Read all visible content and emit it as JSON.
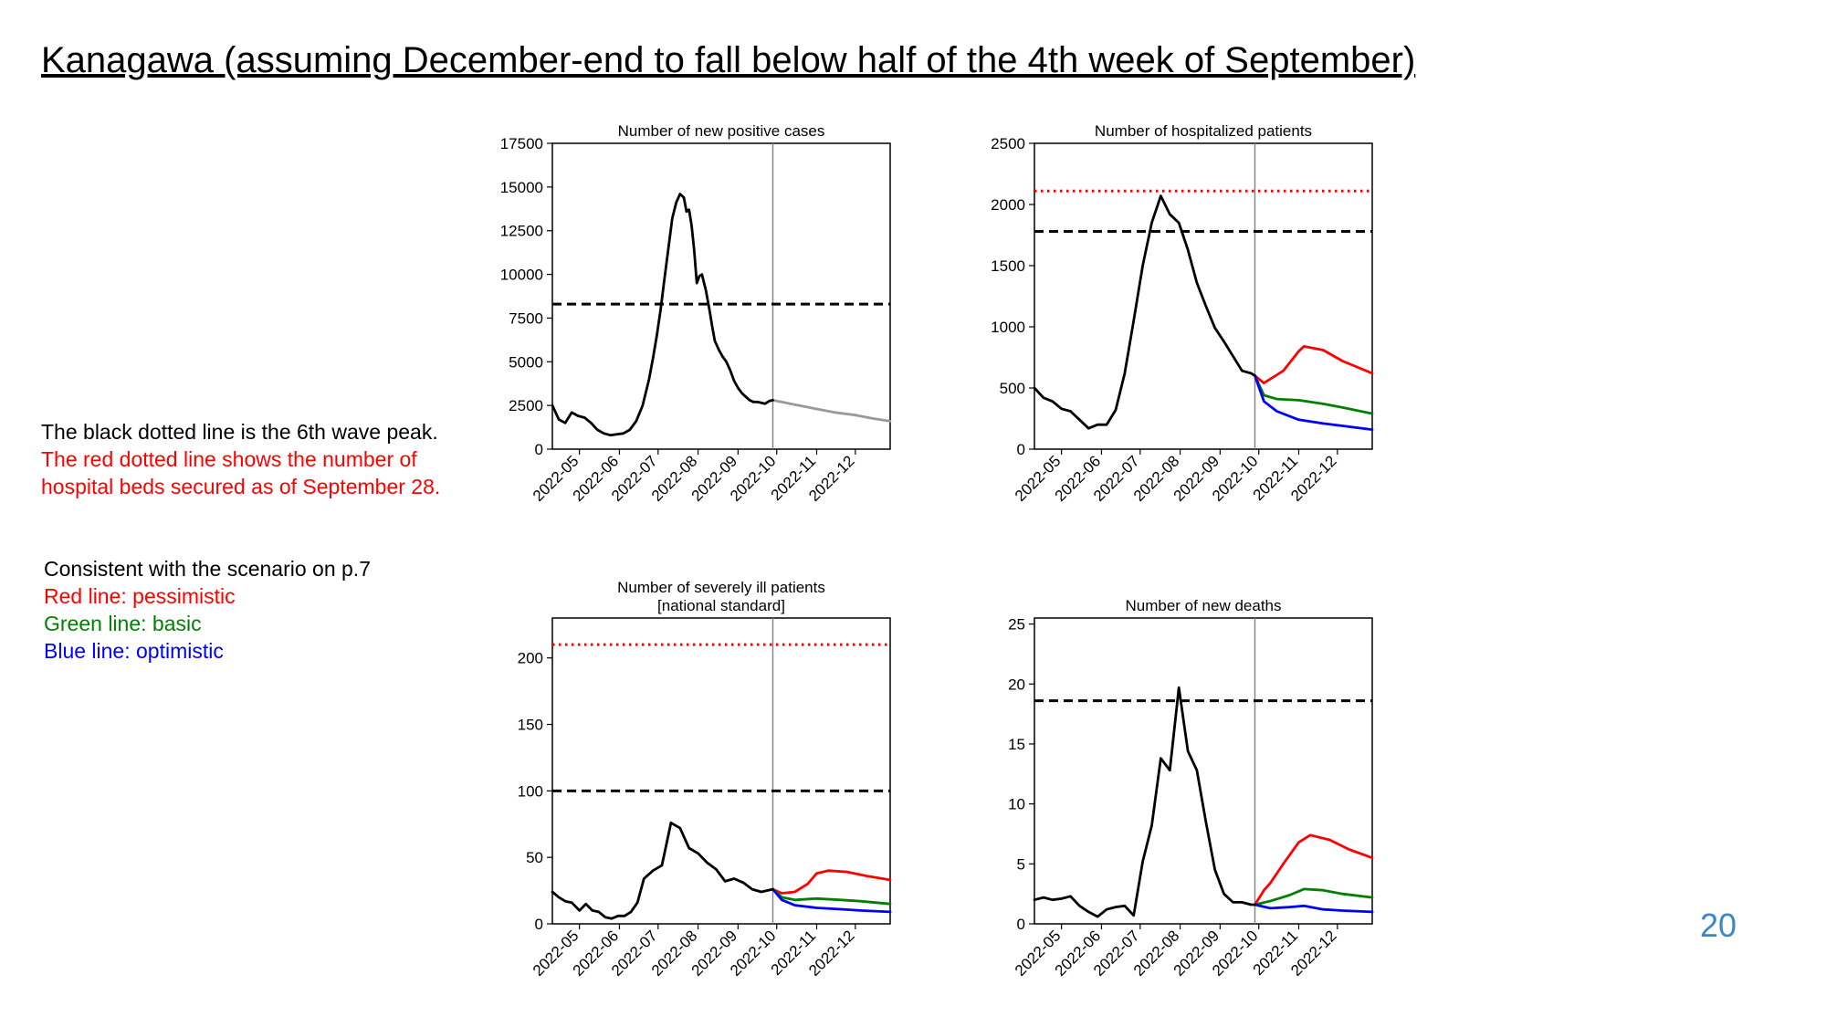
{
  "slide": {
    "title": "Kanagawa (assuming December-end to fall below half of the 4th week of September)",
    "page_number": "20",
    "notes_lines": [
      {
        "text": "The black dotted line is the 6th wave peak.",
        "color": "#000000"
      },
      {
        "text": "The red dotted line shows the number of",
        "color": "#ff0000"
      },
      {
        "text": "hospital beds secured as of September 28.",
        "color": "#ff0000"
      }
    ],
    "scenario_lines": [
      {
        "text": "Consistent with the scenario on p.7",
        "color": "#000000"
      },
      {
        "text": "Red line: pessimistic",
        "color": "#ff0000"
      },
      {
        "text": "Green line: basic",
        "color": "#008000"
      },
      {
        "text": "Blue line: optimistic",
        "color": "#0000ff"
      }
    ]
  },
  "colors": {
    "actual": "#000000",
    "projection_single": "#999999",
    "pessimistic": "#ff0000",
    "basic": "#008000",
    "optimistic": "#0000ff",
    "peak_line": "#000000",
    "beds_line": "#ff0000",
    "divider": "#808080",
    "page_number": "#3b87c7"
  },
  "chart_data": [
    {
      "id": "new_positive_cases",
      "type": "line",
      "title_lines": [
        "Number of new positive cases"
      ],
      "x_tick_labels": [
        "2022-05",
        "2022-06",
        "2022-07",
        "2022-08",
        "2022-09",
        "2022-10",
        "2022-11",
        "2022-12"
      ],
      "x_range": [
        "2022-04-10",
        "2022-12-28"
      ],
      "ylim": [
        0,
        17500
      ],
      "y_ticks": [
        0,
        2500,
        5000,
        7500,
        10000,
        12500,
        15000,
        17500
      ],
      "divider_date": "2022-09-28",
      "hlines": [
        {
          "kind": "peak",
          "value": 8300,
          "style": "dashed"
        }
      ],
      "actual": {
        "x": [
          "2022-04-10",
          "2022-04-15",
          "2022-04-20",
          "2022-04-25",
          "2022-04-30",
          "2022-05-05",
          "2022-05-10",
          "2022-05-15",
          "2022-05-20",
          "2022-05-25",
          "2022-05-30",
          "2022-06-04",
          "2022-06-09",
          "2022-06-14",
          "2022-06-19",
          "2022-06-24",
          "2022-06-27",
          "2022-06-30",
          "2022-07-03",
          "2022-07-06",
          "2022-07-09",
          "2022-07-12",
          "2022-07-15",
          "2022-07-18",
          "2022-07-21",
          "2022-07-23",
          "2022-07-25",
          "2022-07-27",
          "2022-07-29",
          "2022-07-31",
          "2022-08-02",
          "2022-08-04",
          "2022-08-07",
          "2022-08-10",
          "2022-08-12",
          "2022-08-14",
          "2022-08-17",
          "2022-08-20",
          "2022-08-23",
          "2022-08-26",
          "2022-08-29",
          "2022-09-01",
          "2022-09-04",
          "2022-09-07",
          "2022-09-10",
          "2022-09-13",
          "2022-09-16",
          "2022-09-19",
          "2022-09-22",
          "2022-09-25",
          "2022-09-28"
        ],
        "y": [
          2500,
          1700,
          1500,
          2100,
          1900,
          1800,
          1500,
          1100,
          900,
          800,
          850,
          900,
          1100,
          1600,
          2500,
          4000,
          5200,
          6500,
          8000,
          9800,
          11500,
          13200,
          14100,
          14600,
          14400,
          13600,
          13700,
          12800,
          11400,
          9500,
          9900,
          10000,
          9100,
          7900,
          7000,
          6200,
          5700,
          5300,
          5000,
          4500,
          3900,
          3500,
          3200,
          3000,
          2800,
          2700,
          2700,
          2650,
          2600,
          2750,
          2800
        ]
      },
      "projections": [
        {
          "style": "single",
          "x": [
            "2022-09-28",
            "2022-10-15",
            "2022-11-01",
            "2022-11-15",
            "2022-12-01",
            "2022-12-15",
            "2022-12-28"
          ],
          "y": [
            2800,
            2550,
            2300,
            2100,
            1950,
            1750,
            1600
          ]
        }
      ]
    },
    {
      "id": "hospitalized_patients",
      "type": "line",
      "title_lines": [
        "Number of hospitalized patients"
      ],
      "x_tick_labels": [
        "2022-05",
        "2022-06",
        "2022-07",
        "2022-08",
        "2022-09",
        "2022-10",
        "2022-11",
        "2022-12"
      ],
      "x_range": [
        "2022-04-10",
        "2022-12-28"
      ],
      "ylim": [
        0,
        2500
      ],
      "y_ticks": [
        0,
        500,
        1000,
        1500,
        2000,
        2500
      ],
      "divider_date": "2022-09-28",
      "hlines": [
        {
          "kind": "peak",
          "value": 1780,
          "style": "dashed"
        },
        {
          "kind": "beds",
          "value": 2110,
          "style": "dotted"
        }
      ],
      "actual": {
        "x": [
          "2022-04-10",
          "2022-04-17",
          "2022-04-24",
          "2022-05-01",
          "2022-05-08",
          "2022-05-15",
          "2022-05-22",
          "2022-05-29",
          "2022-06-05",
          "2022-06-12",
          "2022-06-19",
          "2022-06-26",
          "2022-07-03",
          "2022-07-10",
          "2022-07-17",
          "2022-07-24",
          "2022-07-31",
          "2022-08-07",
          "2022-08-14",
          "2022-08-21",
          "2022-08-28",
          "2022-09-04",
          "2022-09-11",
          "2022-09-18",
          "2022-09-25",
          "2022-09-28"
        ],
        "y": [
          500,
          420,
          390,
          330,
          310,
          240,
          170,
          200,
          200,
          320,
          620,
          1050,
          1500,
          1850,
          2070,
          1920,
          1850,
          1630,
          1360,
          1170,
          990,
          880,
          760,
          640,
          620,
          600
        ]
      },
      "projections": [
        {
          "style": "pessimistic",
          "x": [
            "2022-09-28",
            "2022-10-05",
            "2022-10-20",
            "2022-11-01",
            "2022-11-05",
            "2022-11-20",
            "2022-12-05",
            "2022-12-28"
          ],
          "y": [
            600,
            540,
            640,
            800,
            840,
            810,
            720,
            620
          ]
        },
        {
          "style": "basic",
          "x": [
            "2022-09-28",
            "2022-10-05",
            "2022-10-15",
            "2022-11-01",
            "2022-11-20",
            "2022-12-05",
            "2022-12-28"
          ],
          "y": [
            600,
            440,
            410,
            400,
            370,
            340,
            290
          ]
        },
        {
          "style": "optimistic",
          "x": [
            "2022-09-28",
            "2022-10-05",
            "2022-10-15",
            "2022-11-01",
            "2022-11-20",
            "2022-12-05",
            "2022-12-28"
          ],
          "y": [
            600,
            390,
            310,
            240,
            210,
            190,
            160
          ]
        }
      ]
    },
    {
      "id": "severely_ill_patients",
      "type": "line",
      "title_lines": [
        "Number of severely ill patients",
        "[national standard]"
      ],
      "x_tick_labels": [
        "2022-05",
        "2022-06",
        "2022-07",
        "2022-08",
        "2022-09",
        "2022-10",
        "2022-11",
        "2022-12"
      ],
      "x_range": [
        "2022-04-10",
        "2022-12-28"
      ],
      "ylim": [
        0,
        230
      ],
      "y_ticks": [
        0,
        50,
        100,
        150,
        200
      ],
      "divider_date": "2022-09-28",
      "hlines": [
        {
          "kind": "peak",
          "value": 100,
          "style": "dashed"
        },
        {
          "kind": "beds",
          "value": 210,
          "style": "dotted"
        }
      ],
      "actual": {
        "x": [
          "2022-04-10",
          "2022-04-15",
          "2022-04-20",
          "2022-04-25",
          "2022-05-01",
          "2022-05-06",
          "2022-05-11",
          "2022-05-16",
          "2022-05-21",
          "2022-05-26",
          "2022-05-31",
          "2022-06-05",
          "2022-06-10",
          "2022-06-15",
          "2022-06-20",
          "2022-06-27",
          "2022-07-04",
          "2022-07-11",
          "2022-07-18",
          "2022-07-25",
          "2022-08-01",
          "2022-08-08",
          "2022-08-15",
          "2022-08-22",
          "2022-08-29",
          "2022-09-05",
          "2022-09-12",
          "2022-09-19",
          "2022-09-28"
        ],
        "y": [
          24,
          20,
          17,
          16,
          10,
          15,
          10,
          9,
          5,
          4,
          6,
          6,
          9,
          16,
          34,
          40,
          44,
          76,
          72,
          57,
          53,
          46,
          41,
          32,
          34,
          31,
          26,
          24,
          26
        ]
      },
      "projections": [
        {
          "style": "pessimistic",
          "x": [
            "2022-09-28",
            "2022-10-05",
            "2022-10-15",
            "2022-10-25",
            "2022-11-01",
            "2022-11-10",
            "2022-11-25",
            "2022-12-10",
            "2022-12-28"
          ],
          "y": [
            26,
            23,
            24,
            30,
            38,
            40,
            39,
            36,
            33
          ]
        },
        {
          "style": "basic",
          "x": [
            "2022-09-28",
            "2022-10-05",
            "2022-10-15",
            "2022-11-01",
            "2022-11-20",
            "2022-12-05",
            "2022-12-28"
          ],
          "y": [
            26,
            20,
            18,
            19,
            18,
            17,
            15
          ]
        },
        {
          "style": "optimistic",
          "x": [
            "2022-09-28",
            "2022-10-05",
            "2022-10-15",
            "2022-11-01",
            "2022-11-20",
            "2022-12-05",
            "2022-12-28"
          ],
          "y": [
            26,
            18,
            14,
            12,
            11,
            10,
            9
          ]
        }
      ]
    },
    {
      "id": "new_deaths",
      "type": "line",
      "title_lines": [
        "Number of new deaths"
      ],
      "x_tick_labels": [
        "2022-05",
        "2022-06",
        "2022-07",
        "2022-08",
        "2022-09",
        "2022-10",
        "2022-11",
        "2022-12"
      ],
      "x_range": [
        "2022-04-10",
        "2022-12-28"
      ],
      "ylim": [
        0,
        25.5
      ],
      "y_ticks": [
        0,
        5,
        10,
        15,
        20,
        25
      ],
      "divider_date": "2022-09-28",
      "hlines": [
        {
          "kind": "peak",
          "value": 18.6,
          "style": "dashed"
        }
      ],
      "actual": {
        "x": [
          "2022-04-10",
          "2022-04-17",
          "2022-04-24",
          "2022-05-01",
          "2022-05-08",
          "2022-05-15",
          "2022-05-22",
          "2022-05-29",
          "2022-06-05",
          "2022-06-12",
          "2022-06-19",
          "2022-06-26",
          "2022-07-03",
          "2022-07-10",
          "2022-07-17",
          "2022-07-24",
          "2022-07-31",
          "2022-08-07",
          "2022-08-14",
          "2022-08-21",
          "2022-08-28",
          "2022-09-04",
          "2022-09-11",
          "2022-09-18",
          "2022-09-25",
          "2022-09-28"
        ],
        "y": [
          2.0,
          2.2,
          2.0,
          2.1,
          2.3,
          1.5,
          1.0,
          0.6,
          1.2,
          1.4,
          1.5,
          0.7,
          5.2,
          8.2,
          13.8,
          12.8,
          19.7,
          14.4,
          12.8,
          8.5,
          4.5,
          2.5,
          1.8,
          1.8,
          1.6,
          1.6
        ]
      },
      "projections": [
        {
          "style": "pessimistic",
          "x": [
            "2022-09-28",
            "2022-10-05",
            "2022-10-10",
            "2022-10-20",
            "2022-11-01",
            "2022-11-10",
            "2022-11-25",
            "2022-12-10",
            "2022-12-28"
          ],
          "y": [
            1.6,
            2.8,
            3.4,
            5.0,
            6.8,
            7.4,
            7.0,
            6.2,
            5.5
          ]
        },
        {
          "style": "basic",
          "x": [
            "2022-09-28",
            "2022-10-10",
            "2022-10-25",
            "2022-11-05",
            "2022-11-20",
            "2022-12-05",
            "2022-12-28"
          ],
          "y": [
            1.6,
            1.9,
            2.4,
            2.9,
            2.8,
            2.5,
            2.2
          ]
        },
        {
          "style": "optimistic",
          "x": [
            "2022-09-28",
            "2022-10-10",
            "2022-10-25",
            "2022-11-05",
            "2022-11-20",
            "2022-12-05",
            "2022-12-28"
          ],
          "y": [
            1.6,
            1.3,
            1.4,
            1.5,
            1.2,
            1.1,
            1.0
          ]
        }
      ]
    }
  ]
}
